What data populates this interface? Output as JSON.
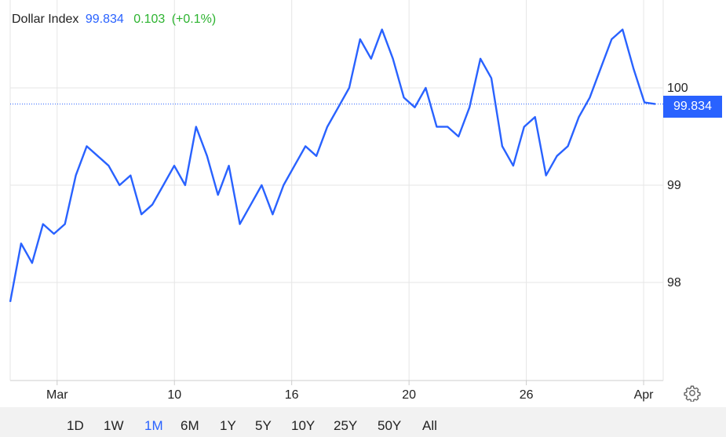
{
  "header": {
    "name": "Dollar Index",
    "price": "99.834",
    "change": "0.103",
    "change_pct": "(+0.1%)"
  },
  "price_label": "99.834",
  "ranges": [
    "1D",
    "1W",
    "1M",
    "6M",
    "1Y",
    "5Y",
    "10Y",
    "25Y",
    "50Y",
    "All"
  ],
  "active_range": "1M",
  "icons": {
    "settings": "gear-icon"
  },
  "colors": {
    "line": "#2962ff",
    "up": "#2db330",
    "grid": "#e6e6e6"
  },
  "chart_data": {
    "type": "line",
    "ylim": [
      97.0,
      100.8
    ],
    "y_ticks": [
      98,
      99,
      100
    ],
    "y_tick_labels": [
      "98",
      "99",
      "100"
    ],
    "x_ticks": [
      {
        "label": "Mar",
        "at": 4
      },
      {
        "label": "10",
        "at": 14
      },
      {
        "label": "16",
        "at": 24
      },
      {
        "label": "20",
        "at": 34
      },
      {
        "label": "26",
        "at": 44
      },
      {
        "label": "Apr",
        "at": 54
      }
    ],
    "xlim": [
      0,
      55
    ],
    "grid": true,
    "last_value": 99.834,
    "series": [
      {
        "values": [
          97.8,
          98.4,
          98.2,
          98.6,
          98.5,
          98.6,
          99.1,
          99.4,
          99.3,
          99.2,
          99.0,
          99.1,
          98.7,
          98.8,
          99.0,
          99.2,
          99.0,
          99.6,
          99.3,
          98.9,
          99.2,
          98.6,
          98.8,
          99.0,
          98.7,
          99.0,
          99.2,
          99.4,
          99.3,
          99.6,
          99.8,
          100.0,
          100.5,
          100.3,
          100.6,
          100.3,
          99.9,
          99.8,
          100.0,
          99.6,
          99.6,
          99.5,
          99.8,
          100.3,
          100.1,
          99.4,
          99.2,
          99.6,
          99.7,
          99.1,
          99.3,
          99.4,
          99.7,
          99.9,
          100.2,
          100.5,
          100.6,
          100.2,
          99.85,
          99.834
        ]
      }
    ]
  }
}
